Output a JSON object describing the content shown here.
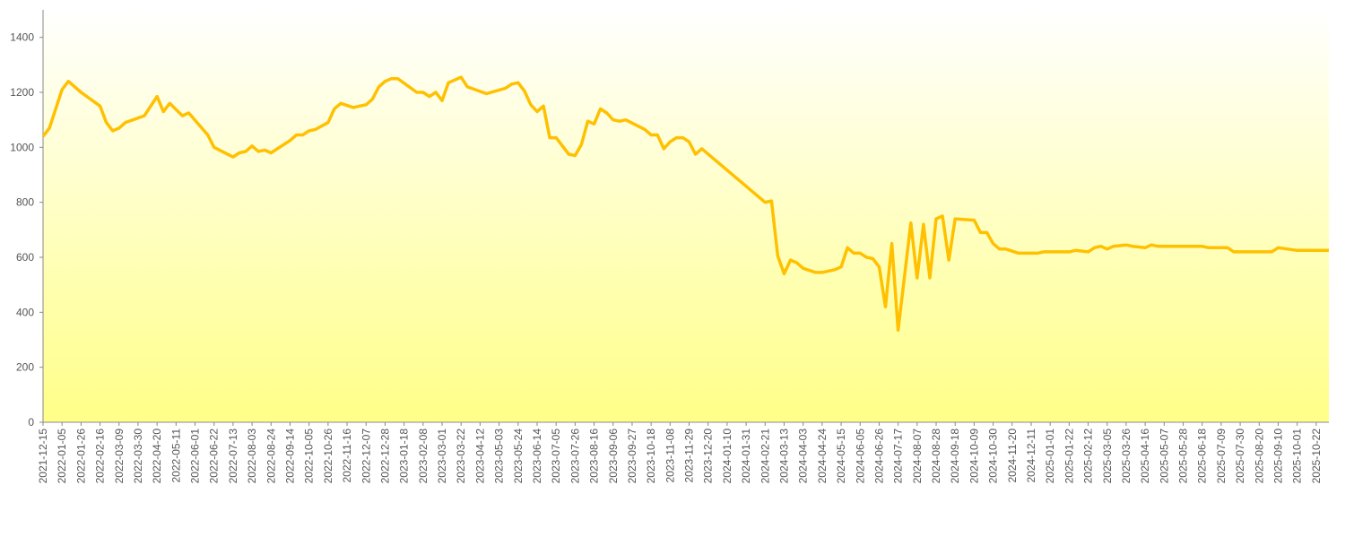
{
  "chart_data": {
    "type": "line",
    "color": "#ffc000",
    "x": [
      "2021-12-15",
      "2021-12-22",
      "2022-01-05",
      "2022-01-12",
      "2022-01-26",
      "2022-02-16",
      "2022-02-23",
      "2022-03-02",
      "2022-03-09",
      "2022-03-16",
      "2022-04-06",
      "2022-04-20",
      "2022-04-27",
      "2022-05-04",
      "2022-05-18",
      "2022-05-25",
      "2022-06-15",
      "2022-06-22",
      "2022-07-13",
      "2022-07-20",
      "2022-07-27",
      "2022-08-03",
      "2022-08-10",
      "2022-08-17",
      "2022-08-24",
      "2022-09-14",
      "2022-09-21",
      "2022-09-28",
      "2022-10-05",
      "2022-10-12",
      "2022-10-26",
      "2022-11-02",
      "2022-11-09",
      "2022-11-23",
      "2022-11-30",
      "2022-12-07",
      "2022-12-14",
      "2022-12-21",
      "2022-12-28",
      "2023-01-04",
      "2023-01-11",
      "2023-02-01",
      "2023-02-08",
      "2023-02-15",
      "2023-02-22",
      "2023-03-01",
      "2023-03-08",
      "2023-03-22",
      "2023-03-29",
      "2023-04-19",
      "2023-05-10",
      "2023-05-17",
      "2023-05-24",
      "2023-05-31",
      "2023-06-07",
      "2023-06-14",
      "2023-06-21",
      "2023-06-28",
      "2023-07-05",
      "2023-07-19",
      "2023-07-26",
      "2023-08-02",
      "2023-08-09",
      "2023-08-16",
      "2023-08-23",
      "2023-08-30",
      "2023-09-06",
      "2023-09-13",
      "2023-09-20",
      "2023-10-11",
      "2023-10-18",
      "2023-10-25",
      "2023-11-01",
      "2023-11-08",
      "2023-11-15",
      "2023-11-22",
      "2023-11-29",
      "2023-12-06",
      "2023-12-13",
      "2024-02-21",
      "2024-02-28",
      "2024-03-06",
      "2024-03-13",
      "2024-03-20",
      "2024-03-27",
      "2024-04-03",
      "2024-04-17",
      "2024-04-24",
      "2024-05-08",
      "2024-05-15",
      "2024-05-22",
      "2024-05-29",
      "2024-06-05",
      "2024-06-12",
      "2024-06-19",
      "2024-06-26",
      "2024-07-03",
      "2024-07-10",
      "2024-07-17",
      "2024-07-31",
      "2024-08-07",
      "2024-08-14",
      "2024-08-21",
      "2024-08-28",
      "2024-09-04",
      "2024-09-11",
      "2024-09-18",
      "2024-10-09",
      "2024-10-16",
      "2024-10-23",
      "2024-10-30",
      "2024-11-06",
      "2024-11-13",
      "2024-11-27",
      "2024-12-18",
      "2024-12-25",
      "2025-01-22",
      "2025-01-29",
      "2025-02-12",
      "2025-02-19",
      "2025-02-26",
      "2025-03-05",
      "2025-03-12",
      "2025-03-26",
      "2025-04-02",
      "2025-04-16",
      "2025-04-23",
      "2025-04-30",
      "2025-06-18",
      "2025-06-25",
      "2025-07-16",
      "2025-07-23",
      "2025-09-03",
      "2025-09-10",
      "2025-10-01",
      "2025-11-05"
    ],
    "values": [
      1040,
      1070,
      1210,
      1240,
      1200,
      1150,
      1090,
      1060,
      1070,
      1090,
      1115,
      1185,
      1130,
      1160,
      1115,
      1125,
      1045,
      1000,
      965,
      980,
      985,
      1005,
      985,
      990,
      980,
      1025,
      1045,
      1045,
      1060,
      1065,
      1090,
      1140,
      1160,
      1145,
      1150,
      1155,
      1175,
      1220,
      1240,
      1250,
      1250,
      1200,
      1200,
      1185,
      1200,
      1170,
      1235,
      1255,
      1220,
      1195,
      1215,
      1230,
      1235,
      1205,
      1155,
      1130,
      1150,
      1035,
      1035,
      975,
      970,
      1010,
      1095,
      1085,
      1140,
      1125,
      1100,
      1095,
      1100,
      1065,
      1045,
      1045,
      995,
      1020,
      1035,
      1035,
      1020,
      975,
      995,
      800,
      805,
      605,
      540,
      590,
      580,
      560,
      545,
      545,
      555,
      565,
      635,
      615,
      615,
      600,
      595,
      565,
      420,
      650,
      335,
      725,
      525,
      720,
      525,
      740,
      750,
      590,
      740,
      735,
      690,
      690,
      650,
      630,
      630,
      615,
      615,
      620,
      620,
      625,
      620,
      635,
      640,
      630,
      640,
      645,
      640,
      635,
      645,
      640,
      640,
      635,
      635,
      620,
      620,
      635,
      625,
      625
    ],
    "xlim": [
      "2021-12-15",
      "2025-11-05"
    ],
    "xticks": [
      "2021-12-15",
      "2022-01-05",
      "2022-01-26",
      "2022-02-16",
      "2022-03-09",
      "2022-03-30",
      "2022-04-20",
      "2022-05-11",
      "2022-06-01",
      "2022-06-22",
      "2022-07-13",
      "2022-08-03",
      "2022-08-24",
      "2022-09-14",
      "2022-10-05",
      "2022-10-26",
      "2022-11-16",
      "2022-12-07",
      "2022-12-28",
      "2023-01-18",
      "2023-02-08",
      "2023-03-01",
      "2023-03-22",
      "2023-04-12",
      "2023-05-03",
      "2023-05-24",
      "2023-06-14",
      "2023-07-05",
      "2023-07-26",
      "2023-08-16",
      "2023-09-06",
      "2023-09-27",
      "2023-10-18",
      "2023-11-08",
      "2023-11-29",
      "2023-12-20",
      "2024-01-10",
      "2024-01-31",
      "2024-02-21",
      "2024-03-13",
      "2024-04-03",
      "2024-04-24",
      "2024-05-15",
      "2024-06-05",
      "2024-06-26",
      "2024-07-17",
      "2024-08-07",
      "2024-08-28",
      "2024-09-18",
      "2024-10-09",
      "2024-10-30",
      "2024-11-20",
      "2024-12-11",
      "2025-01-01",
      "2025-01-22",
      "2025-02-12",
      "2025-03-05",
      "2025-03-26",
      "2025-04-16",
      "2025-05-07",
      "2025-05-28",
      "2025-06-18",
      "2025-07-09",
      "2025-07-30",
      "2025-08-20",
      "2025-09-10",
      "2025-10-01",
      "2025-10-22"
    ],
    "ylim": [
      0,
      1500
    ],
    "yticks": [
      0,
      200,
      400,
      600,
      800,
      1000,
      1200,
      1400
    ],
    "grid": false
  }
}
